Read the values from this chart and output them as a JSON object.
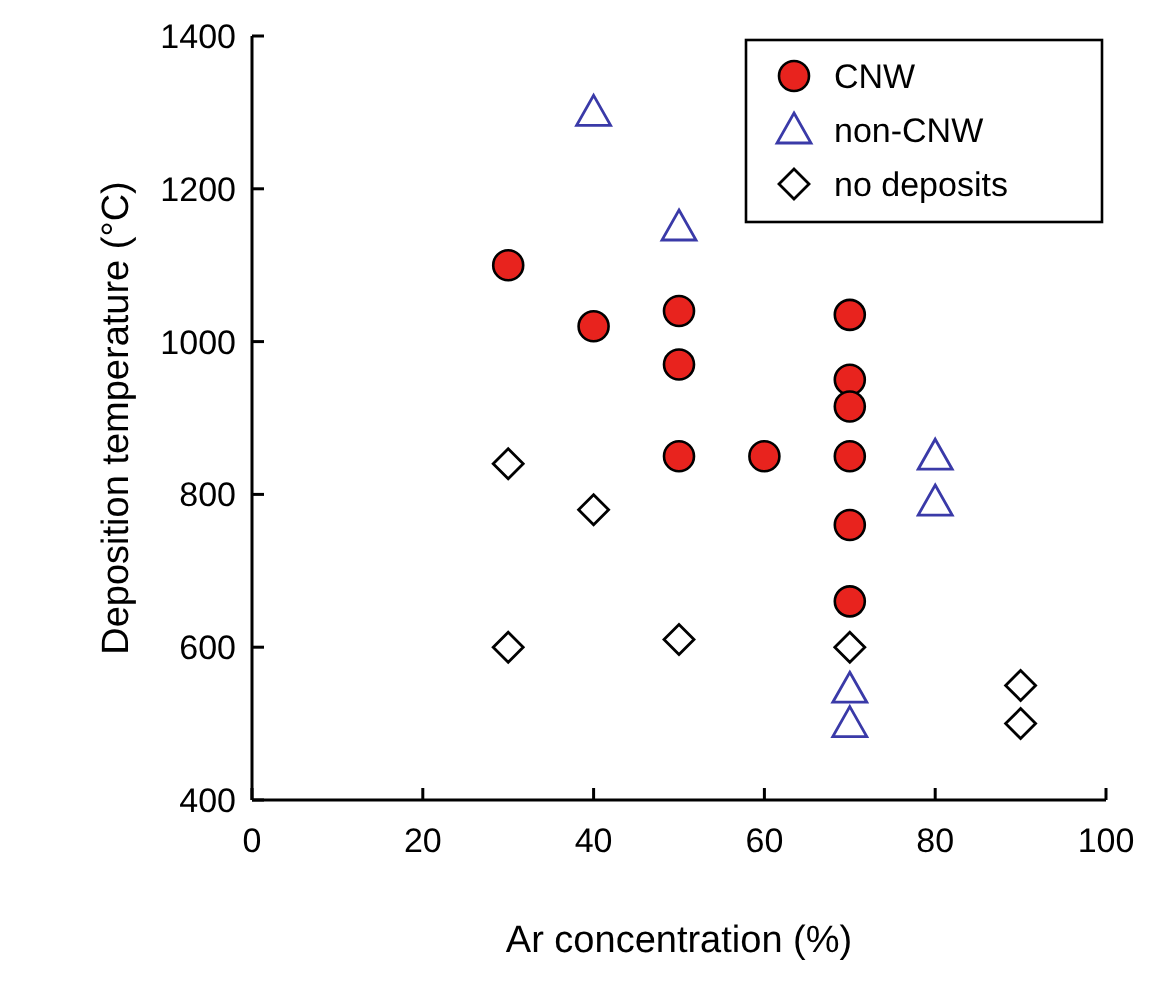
{
  "chart_data": {
    "type": "scatter",
    "xlabel": "Ar concentration (%)",
    "ylabel": "Deposition temperature (°C)",
    "xlim": [
      0,
      100
    ],
    "xticks": [
      0,
      20,
      40,
      60,
      80,
      100
    ],
    "ylim": [
      400,
      1400
    ],
    "yticks": [
      400,
      600,
      800,
      1000,
      1200,
      1400
    ],
    "grid": false,
    "legend": "top right",
    "series": [
      {
        "name": "CNW",
        "color": "#e8231e",
        "marker": "circle",
        "x": [
          30,
          40,
          50,
          50,
          50,
          60,
          70,
          70,
          70,
          70,
          70,
          70
        ],
        "values": [
          1100,
          1020,
          1040,
          970,
          850,
          850,
          1035,
          950,
          915,
          850,
          760,
          660
        ]
      },
      {
        "name": "non-CNW",
        "color": "#3a3aa8",
        "marker": "triangle",
        "x": [
          40,
          50,
          80,
          80,
          70,
          70
        ],
        "values": [
          1300,
          1150,
          850,
          790,
          545,
          500
        ]
      },
      {
        "name": "no deposits",
        "color": "#000000",
        "marker": "diamond",
        "x": [
          30,
          40,
          30,
          50,
          70,
          90,
          90
        ],
        "values": [
          840,
          780,
          600,
          610,
          600,
          550,
          500
        ]
      }
    ]
  }
}
